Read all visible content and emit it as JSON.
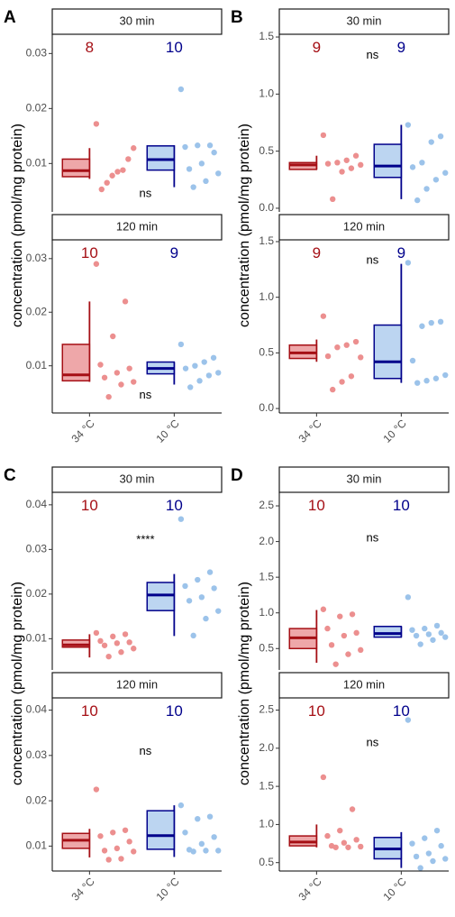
{
  "chart_data": [
    {
      "type": "box",
      "label": "A",
      "ylabel": "concentration (pmol/mg protein)",
      "categories": [
        "34 °C",
        "10 °C"
      ],
      "facets": [
        {
          "title": "30 min",
          "ylim": [
            0.0012,
            0.0335
          ],
          "yticks": [
            0.01,
            0.02,
            0.03
          ],
          "test": "ns",
          "groups": [
            {
              "color": "#a50f15",
              "fill": "#e88a8c",
              "point_color": "#ec8f8f",
              "n": 8,
              "box": {
                "whisker_low": 0.0072,
                "q1": 0.0076,
                "median": 0.0087,
                "q3": 0.0108,
                "whisker_high": 0.0128
              },
              "points": [
                0.0172,
                0.0128,
                0.0108,
                0.0088,
                0.0085,
                0.0078,
                0.0065,
                0.0053
              ]
            },
            {
              "color": "#00008b",
              "fill": "#a6c7ec",
              "point_color": "#9cc3ea",
              "n": 10,
              "box": {
                "whisker_low": 0.0057,
                "q1": 0.0088,
                "median": 0.0107,
                "q3": 0.0132,
                "whisker_high": 0.0133
              },
              "points": [
                0.0235,
                0.0133,
                0.0133,
                0.013,
                0.012,
                0.01,
                0.009,
                0.0082,
                0.0068,
                0.0057
              ]
            }
          ]
        },
        {
          "title": "120 min",
          "ylim": [
            0.0012,
            0.0335
          ],
          "yticks": [
            0.01,
            0.02,
            0.03
          ],
          "test": "ns",
          "groups": [
            {
              "color": "#a50f15",
              "fill": "#e88a8c",
              "point_color": "#ec8f8f",
              "n": 10,
              "box": {
                "whisker_low": 0.007,
                "q1": 0.0072,
                "median": 0.0083,
                "q3": 0.014,
                "whisker_high": 0.022
              },
              "points": [
                0.029,
                0.022,
                0.0155,
                0.0102,
                0.0095,
                0.0087,
                0.0078,
                0.007,
                0.0065,
                0.0042
              ]
            },
            {
              "color": "#00008b",
              "fill": "#a6c7ec",
              "point_color": "#9cc3ea",
              "n": 9,
              "box": {
                "whisker_low": 0.0065,
                "q1": 0.0085,
                "median": 0.0095,
                "q3": 0.0107,
                "whisker_high": 0.0107
              },
              "points": [
                0.014,
                0.0115,
                0.0107,
                0.01,
                0.0095,
                0.0087,
                0.0082,
                0.0072,
                0.006
              ]
            }
          ]
        }
      ]
    },
    {
      "type": "box",
      "label": "B",
      "ylabel": "concentration (pmol/mg protein)",
      "categories": [
        "34 °C",
        "10 °C"
      ],
      "facets": [
        {
          "title": "30 min",
          "ylim": [
            -0.032,
            1.524
          ],
          "yticks": [
            {
              "value": 0,
              "label": "0.0"
            },
            0.5,
            {
              "value": 1,
              "label": "1.0"
            },
            1.5
          ],
          "test": "ns",
          "groups": [
            {
              "color": "#a50f15",
              "fill": "#e88a8c",
              "point_color": "#ec8f8f",
              "n": 9,
              "box": {
                "whisker_low": 0.34,
                "q1": 0.34,
                "median": 0.38,
                "q3": 0.4,
                "whisker_high": 0.46
              },
              "points": [
                0.64,
                0.46,
                0.42,
                0.4,
                0.39,
                0.38,
                0.35,
                0.32,
                0.08
              ]
            },
            {
              "color": "#00008b",
              "fill": "#a6c7ec",
              "point_color": "#9cc3ea",
              "n": 9,
              "box": {
                "whisker_low": 0.08,
                "q1": 0.27,
                "median": 0.37,
                "q3": 0.56,
                "whisker_high": 0.73
              },
              "points": [
                0.73,
                0.63,
                0.58,
                0.4,
                0.36,
                0.31,
                0.25,
                0.17,
                0.07
              ]
            }
          ]
        },
        {
          "title": "120 min",
          "ylim": [
            -0.04,
            1.516
          ],
          "yticks": [
            {
              "value": 0,
              "label": "0.0"
            },
            0.5,
            {
              "value": 1,
              "label": "1.0"
            },
            1.5
          ],
          "test": "ns",
          "groups": [
            {
              "color": "#a50f15",
              "fill": "#e88a8c",
              "point_color": "#ec8f8f",
              "n": 9,
              "box": {
                "whisker_low": 0.42,
                "q1": 0.45,
                "median": 0.5,
                "q3": 0.57,
                "whisker_high": 0.62
              },
              "points": [
                0.83,
                0.6,
                0.57,
                0.55,
                0.47,
                0.46,
                0.29,
                0.24,
                0.17
              ]
            },
            {
              "color": "#00008b",
              "fill": "#a6c7ec",
              "point_color": "#9cc3ea",
              "n": 9,
              "box": {
                "whisker_low": 0.23,
                "q1": 0.27,
                "median": 0.42,
                "q3": 0.75,
                "whisker_high": 1.3
              },
              "points": [
                1.31,
                0.78,
                0.77,
                0.74,
                0.43,
                0.3,
                0.27,
                0.25,
                0.23
              ]
            }
          ]
        }
      ]
    },
    {
      "type": "box",
      "label": "C",
      "ylabel": "concentration (pmol/mg protein)",
      "categories": [
        "34 °C",
        "10 °C"
      ],
      "facets": [
        {
          "title": "30 min",
          "ylim": [
            0.003,
            0.0428
          ],
          "yticks": [
            0.01,
            0.02,
            0.03,
            0.04
          ],
          "test": "****",
          "groups": [
            {
              "color": "#a50f15",
              "fill": "#e88a8c",
              "point_color": "#ec8f8f",
              "n": 10,
              "box": {
                "whisker_low": 0.0058,
                "q1": 0.0081,
                "median": 0.0086,
                "q3": 0.0097,
                "whisker_high": 0.011
              },
              "points": [
                0.0113,
                0.011,
                0.0105,
                0.0095,
                0.0092,
                0.009,
                0.0085,
                0.0078,
                0.007,
                0.006
              ]
            },
            {
              "color": "#00008b",
              "fill": "#a6c7ec",
              "point_color": "#9cc3ea",
              "n": 10,
              "box": {
                "whisker_low": 0.0106,
                "q1": 0.0163,
                "median": 0.0198,
                "q3": 0.0226,
                "whisker_high": 0.0245
              },
              "points": [
                0.0368,
                0.0249,
                0.0232,
                0.0218,
                0.0213,
                0.0193,
                0.0185,
                0.0162,
                0.0145,
                0.0107
              ]
            }
          ]
        },
        {
          "title": "120 min",
          "ylim": [
            0.0045,
            0.0427
          ],
          "yticks": [
            0.01,
            0.02,
            0.03,
            0.04
          ],
          "test": "ns",
          "groups": [
            {
              "color": "#a50f15",
              "fill": "#e88a8c",
              "point_color": "#ec8f8f",
              "n": 10,
              "box": {
                "whisker_low": 0.0075,
                "q1": 0.0095,
                "median": 0.0113,
                "q3": 0.0128,
                "whisker_high": 0.0138
              },
              "points": [
                0.0225,
                0.0135,
                0.013,
                0.0122,
                0.011,
                0.0095,
                0.009,
                0.0088,
                0.0072,
                0.007
              ]
            },
            {
              "color": "#00008b",
              "fill": "#a6c7ec",
              "point_color": "#9cc3ea",
              "n": 10,
              "box": {
                "whisker_low": 0.0076,
                "q1": 0.0093,
                "median": 0.0123,
                "q3": 0.0178,
                "whisker_high": 0.019
              },
              "points": [
                0.019,
                0.0165,
                0.016,
                0.013,
                0.012,
                0.0105,
                0.0092,
                0.009,
                0.009,
                0.0088
              ]
            }
          ]
        }
      ]
    },
    {
      "type": "box",
      "label": "D",
      "ylabel": "concentration (pmol/mg protein)",
      "categories": [
        "34 °C",
        "10 °C"
      ],
      "facets": [
        {
          "title": "30 min",
          "ylim": [
            0.2,
            2.69
          ],
          "yticks": [
            0.5,
            {
              "value": 1,
              "label": "1.0"
            },
            1.5,
            {
              "value": 2,
              "label": "2.0"
            },
            2.5
          ],
          "test": "ns",
          "groups": [
            {
              "color": "#a50f15",
              "fill": "#e88a8c",
              "point_color": "#ec8f8f",
              "n": 10,
              "box": {
                "whisker_low": 0.3,
                "q1": 0.5,
                "median": 0.65,
                "q3": 0.78,
                "whisker_high": 1.04
              },
              "points": [
                1.05,
                0.98,
                0.95,
                0.78,
                0.72,
                0.68,
                0.55,
                0.48,
                0.42,
                0.28
              ]
            },
            {
              "color": "#00008b",
              "fill": "#a6c7ec",
              "point_color": "#9cc3ea",
              "n": 10,
              "box": {
                "whisker_low": 0.66,
                "q1": 0.66,
                "median": 0.71,
                "q3": 0.81,
                "whisker_high": 0.81
              },
              "points": [
                1.22,
                0.82,
                0.78,
                0.76,
                0.72,
                0.7,
                0.68,
                0.66,
                0.62,
                0.56
              ]
            }
          ]
        },
        {
          "title": "120 min",
          "ylim": [
            0.39,
            2.66
          ],
          "yticks": [
            0.5,
            {
              "value": 1,
              "label": "1.0"
            },
            1.5,
            {
              "value": 2,
              "label": "2.0"
            },
            2.5
          ],
          "test": "ns",
          "groups": [
            {
              "color": "#a50f15",
              "fill": "#e88a8c",
              "point_color": "#ec8f8f",
              "n": 10,
              "box": {
                "whisker_low": 0.7,
                "q1": 0.72,
                "median": 0.77,
                "q3": 0.85,
                "whisker_high": 1.0
              },
              "points": [
                1.62,
                1.2,
                0.92,
                0.85,
                0.8,
                0.76,
                0.72,
                0.71,
                0.7,
                0.7
              ]
            },
            {
              "color": "#00008b",
              "fill": "#a6c7ec",
              "point_color": "#9cc3ea",
              "n": 10,
              "box": {
                "whisker_low": 0.43,
                "q1": 0.55,
                "median": 0.68,
                "q3": 0.83,
                "whisker_high": 0.9
              },
              "points": [
                2.37,
                0.92,
                0.82,
                0.75,
                0.72,
                0.62,
                0.58,
                0.55,
                0.52,
                0.43
              ]
            }
          ]
        }
      ]
    }
  ]
}
